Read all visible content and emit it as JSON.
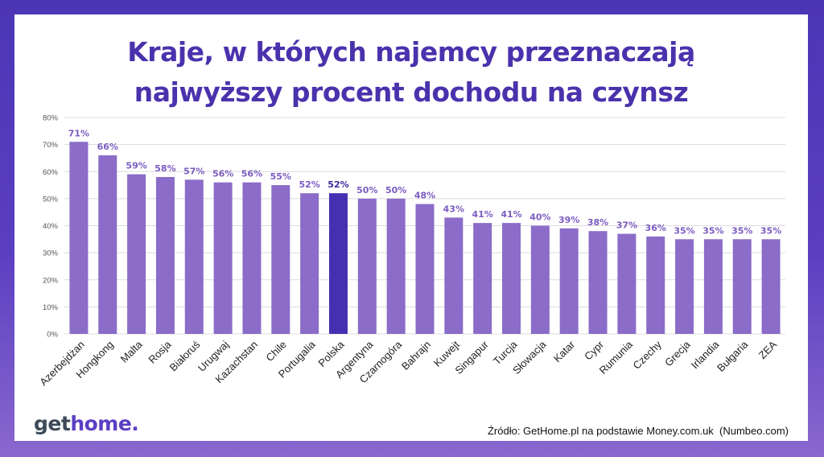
{
  "title_line1": "Kraje, w których najemcy przeznaczają",
  "title_line2": "najwyższy procent dochodu na czynsz",
  "logo": {
    "part1": "get",
    "part2": "home",
    "part3": "."
  },
  "source": "Źródło: GetHome.pl na podstawie Money.com.uk  (Numbeo.com)",
  "colors": {
    "bar": "#8b6cc8",
    "highlight": "#4630b2",
    "label": "#7a5cc0",
    "highlight_label": "#3a2a9e",
    "background": "#4b36b6"
  },
  "chart_data": {
    "type": "bar",
    "title": "Kraje, w których najemcy przeznaczają najwyższy procent dochodu na czynsz",
    "xlabel": "",
    "ylabel": "",
    "ylim": [
      0,
      80
    ],
    "yticks": [
      "0%",
      "10%",
      "20%",
      "30%",
      "40%",
      "50%",
      "60%",
      "70%",
      "80%"
    ],
    "grid": true,
    "highlight": "Polska",
    "categories": [
      "Azerbejdżan",
      "Hongkong",
      "Malta",
      "Rosja",
      "Białoruś",
      "Urugwaj",
      "Kazachstan",
      "Chile",
      "Portugalia",
      "Polska",
      "Argentyna",
      "Czarnogóra",
      "Bahrajn",
      "Kuwejt",
      "Singapur",
      "Turcja",
      "Słowacja",
      "Katar",
      "Cypr",
      "Rumunia",
      "Czechy",
      "Grecja",
      "Irlandia",
      "Bułgaria",
      "ZEA"
    ],
    "values": [
      71,
      66,
      59,
      58,
      57,
      56,
      56,
      55,
      52,
      52,
      50,
      50,
      48,
      43,
      41,
      41,
      40,
      39,
      38,
      37,
      36,
      35,
      35,
      35,
      35
    ],
    "labels": [
      "71%",
      "66%",
      "59%",
      "58%",
      "57%",
      "56%",
      "56%",
      "55%",
      "52%",
      "52%",
      "50%",
      "50%",
      "48%",
      "43%",
      "41%",
      "41%",
      "40%",
      "39%",
      "38%",
      "37%",
      "36%",
      "35%",
      "35%",
      "35%",
      "35%"
    ]
  }
}
